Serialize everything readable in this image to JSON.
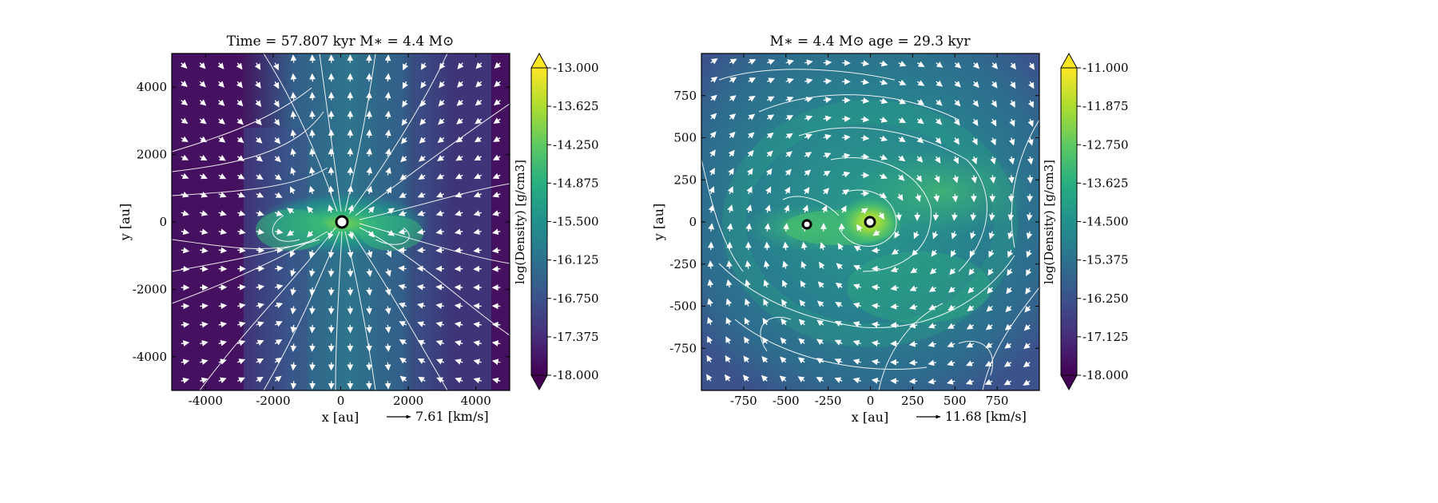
{
  "chart_data": [
    {
      "type": "heatmap",
      "title": "Time = 57.807 kyr    M$_*$ = 4.4 M$_\\odot$",
      "title_display": "Time = 57.807 kyr    M∗ = 4.4 M⊙",
      "xlabel": "x [au]",
      "ylabel": "y [au]",
      "xlim": [
        -5000,
        5000
      ],
      "ylim": [
        -5000,
        5000
      ],
      "xticks": [
        -4000,
        -2000,
        0,
        2000,
        4000
      ],
      "yticks": [
        -4000,
        -2000,
        0,
        2000,
        4000
      ],
      "colorbar": {
        "label": "log(Density) [g/cm3]",
        "range": [
          -18.0,
          -13.0
        ],
        "ticks": [
          "-13.000",
          "-13.625",
          "-14.250",
          "-14.875",
          "-15.500",
          "-16.125",
          "-16.750",
          "-17.375",
          "-18.000"
        ],
        "colormap": "viridis",
        "extend": "both"
      },
      "velocity_key": {
        "text": "7.61 [km/s]"
      },
      "sink_particles": [
        {
          "x": 0,
          "y": 0
        }
      ],
      "features": "bipolar outflow cavity along vertical axis with flattened dense structure near origin"
    },
    {
      "type": "heatmap",
      "title": "M$_*$ = 4.4 M$_\\odot$        age = 29.3 kyr",
      "title_display": "M∗ = 4.4 M⊙        age = 29.3 kyr",
      "xlabel": "x [au]",
      "ylabel": "y [au]",
      "xlim": [
        -1000,
        1000
      ],
      "ylim": [
        -1000,
        1000
      ],
      "xticks": [
        -750,
        -500,
        -250,
        0,
        250,
        500,
        750
      ],
      "yticks": [
        -750,
        -500,
        -250,
        0,
        250,
        500,
        750
      ],
      "colorbar": {
        "label": "log(Density) [g/cm3]",
        "range": [
          -18.0,
          -11.0
        ],
        "ticks": [
          "-11.000",
          "-11.875",
          "-12.750",
          "-13.625",
          "-14.500",
          "-15.375",
          "-16.250",
          "-17.125",
          "-18.000"
        ],
        "colormap": "viridis",
        "extend": "both"
      },
      "velocity_key": {
        "text": "11.68 [km/s]"
      },
      "sink_particles": [
        {
          "x": 0,
          "y": 0
        },
        {
          "x": -380,
          "y": -10
        }
      ],
      "features": "rotating disk-like spiral flow with dense clump at origin and companion to the west"
    }
  ]
}
